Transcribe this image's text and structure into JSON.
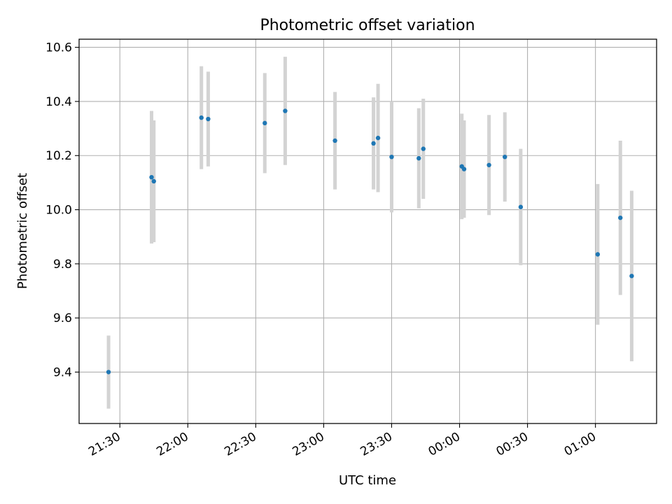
{
  "chart_data": {
    "type": "scatter",
    "title": "Photometric offset variation",
    "xlabel": "UTC time",
    "ylabel": "Photometric offset",
    "x_tick_labels": [
      "21:30",
      "22:00",
      "22:30",
      "23:00",
      "23:30",
      "00:00",
      "00:30",
      "01:00"
    ],
    "y_tick_labels": [
      "9.4",
      "9.6",
      "9.8",
      "10.0",
      "10.2",
      "10.4",
      "10.6"
    ],
    "x_ticks": [
      "21:30",
      "22:00",
      "22:30",
      "23:00",
      "23:30",
      "00:00",
      "00:30",
      "01:00"
    ],
    "y_ticks": [
      9.4,
      9.6,
      9.8,
      10.0,
      10.2,
      10.4,
      10.6
    ],
    "xlim": [
      "21:12",
      "25:27"
    ],
    "ylim": [
      9.21,
      10.63
    ],
    "grid": true,
    "marker_color": "#1f77b4",
    "errorbar_color": "#d3d3d3",
    "points": [
      {
        "x": "21:25",
        "y": 9.4,
        "yerr": 0.135
      },
      {
        "x": "21:44",
        "y": 10.12,
        "yerr": 0.245
      },
      {
        "x": "21:45",
        "y": 10.105,
        "yerr": 0.225
      },
      {
        "x": "22:06",
        "y": 10.34,
        "yerr": 0.19
      },
      {
        "x": "22:09",
        "y": 10.335,
        "yerr": 0.175
      },
      {
        "x": "22:34",
        "y": 10.32,
        "yerr": 0.185
      },
      {
        "x": "22:43",
        "y": 10.365,
        "yerr": 0.2
      },
      {
        "x": "23:05",
        "y": 10.255,
        "yerr": 0.18
      },
      {
        "x": "23:22",
        "y": 10.245,
        "yerr": 0.17
      },
      {
        "x": "23:24",
        "y": 10.265,
        "yerr": 0.2
      },
      {
        "x": "23:30",
        "y": 10.195,
        "yerr": 0.205
      },
      {
        "x": "23:42",
        "y": 10.19,
        "yerr": 0.185
      },
      {
        "x": "23:44",
        "y": 10.225,
        "yerr": 0.185
      },
      {
        "x": "00:01",
        "y": 10.16,
        "yerr": 0.195
      },
      {
        "x": "00:02",
        "y": 10.15,
        "yerr": 0.18
      },
      {
        "x": "00:13",
        "y": 10.165,
        "yerr": 0.185
      },
      {
        "x": "00:20",
        "y": 10.195,
        "yerr": 0.165
      },
      {
        "x": "00:27",
        "y": 10.01,
        "yerr": 0.215
      },
      {
        "x": "01:01",
        "y": 9.835,
        "yerr": 0.26
      },
      {
        "x": "01:11",
        "y": 9.97,
        "yerr": 0.285
      },
      {
        "x": "01:16",
        "y": 9.755,
        "yerr": 0.315
      }
    ]
  }
}
